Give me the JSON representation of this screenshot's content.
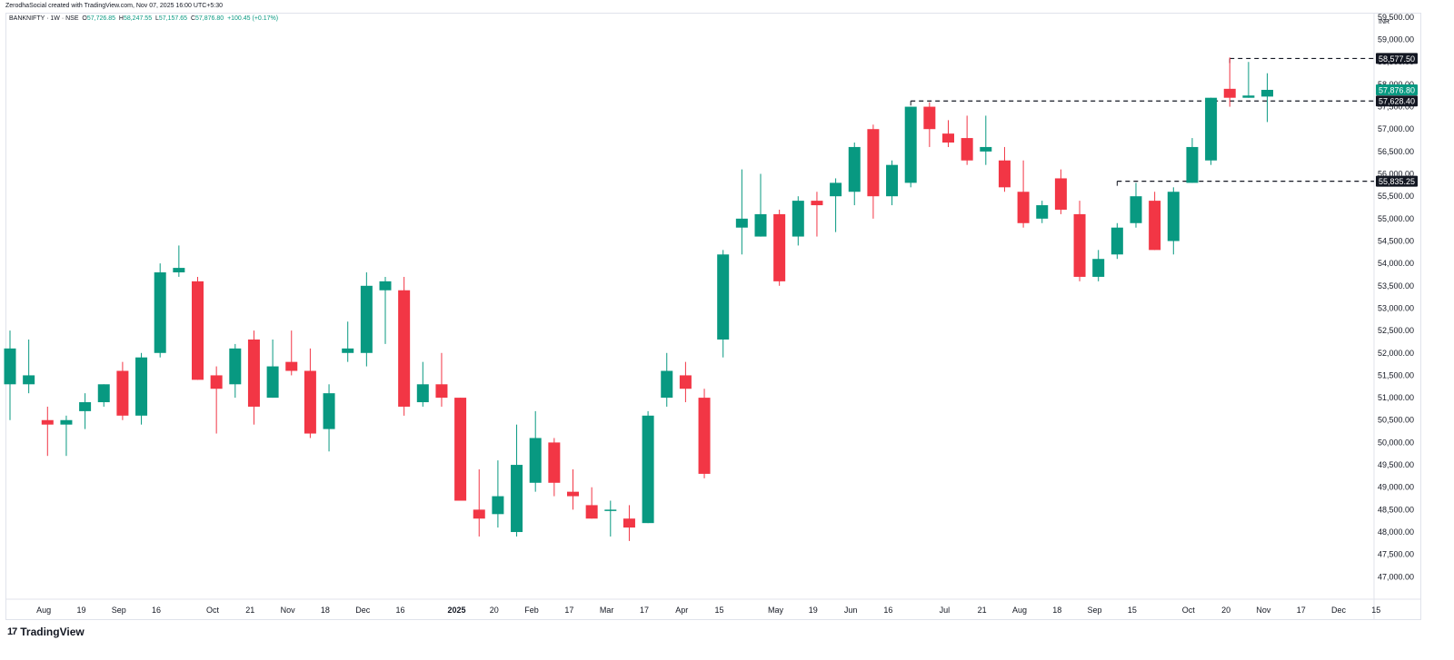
{
  "attribution": "ZerodhaSocial created with TradingView.com, Nov 07, 2025 16:00 UTC+5:30",
  "symbol_line": {
    "title": "BANKNIFTY · 1W · NSE",
    "open_label": "O",
    "open": "57,726.85",
    "high_label": "H",
    "high": "58,247.55",
    "low_label": "L",
    "low": "57,157.65",
    "close_label": "C",
    "close": "57,876.80",
    "change": "+100.45 (+0.17%)"
  },
  "brand": {
    "name": "TradingView",
    "logo_icon": "tradingview-logo-icon"
  },
  "colors": {
    "up": "#089981",
    "down": "#f23645",
    "grid": "#ffffff",
    "text": "#131722"
  },
  "chart_data": {
    "type": "candlestick",
    "title": "BANKNIFTY · 1W · NSE",
    "currency": "INR",
    "ylim": [
      46500,
      59600
    ],
    "y_ticks": [
      47000,
      47500,
      48000,
      48500,
      49000,
      49500,
      50000,
      50500,
      51000,
      51500,
      52000,
      52500,
      53000,
      53500,
      54000,
      54500,
      55000,
      55500,
      56000,
      56500,
      57000,
      57500,
      58000,
      58500,
      59000,
      59500
    ],
    "y_tick_labels": [
      "47,000.00",
      "47,500.00",
      "48,000.00",
      "48,500.00",
      "49,000.00",
      "49,500.00",
      "50,000.00",
      "50,500.00",
      "51,000.00",
      "51,500.00",
      "52,000.00",
      "52,500.00",
      "53,000.00",
      "53,500.00",
      "54,000.00",
      "54,500.00",
      "55,000.00",
      "55,500.00",
      "56,000.00",
      "56,500.00",
      "57,000.00",
      "57,500.00",
      "58,000.00",
      "58,500.00",
      "59,000.00",
      "59,500.00"
    ],
    "x_ticks": [
      {
        "i": 1.8,
        "label": "Aug",
        "bold": false
      },
      {
        "i": 3.8,
        "label": "19",
        "bold": false
      },
      {
        "i": 5.8,
        "label": "Sep",
        "bold": false
      },
      {
        "i": 7.8,
        "label": "16",
        "bold": false
      },
      {
        "i": 10.8,
        "label": "Oct",
        "bold": false
      },
      {
        "i": 12.8,
        "label": "21",
        "bold": false
      },
      {
        "i": 14.8,
        "label": "Nov",
        "bold": false
      },
      {
        "i": 16.8,
        "label": "18",
        "bold": false
      },
      {
        "i": 18.8,
        "label": "Dec",
        "bold": false
      },
      {
        "i": 20.8,
        "label": "16",
        "bold": false
      },
      {
        "i": 23.8,
        "label": "2025",
        "bold": true
      },
      {
        "i": 25.8,
        "label": "20",
        "bold": false
      },
      {
        "i": 27.8,
        "label": "Feb",
        "bold": false
      },
      {
        "i": 29.8,
        "label": "17",
        "bold": false
      },
      {
        "i": 31.8,
        "label": "Mar",
        "bold": false
      },
      {
        "i": 33.8,
        "label": "17",
        "bold": false
      },
      {
        "i": 35.8,
        "label": "Apr",
        "bold": false
      },
      {
        "i": 37.8,
        "label": "15",
        "bold": false
      },
      {
        "i": 40.8,
        "label": "May",
        "bold": false
      },
      {
        "i": 42.8,
        "label": "19",
        "bold": false
      },
      {
        "i": 44.8,
        "label": "Jun",
        "bold": false
      },
      {
        "i": 46.8,
        "label": "16",
        "bold": false
      },
      {
        "i": 49.8,
        "label": "Jul",
        "bold": false
      },
      {
        "i": 51.8,
        "label": "21",
        "bold": false
      },
      {
        "i": 53.8,
        "label": "Aug",
        "bold": false
      },
      {
        "i": 55.8,
        "label": "18",
        "bold": false
      },
      {
        "i": 57.8,
        "label": "Sep",
        "bold": false
      },
      {
        "i": 59.8,
        "label": "15",
        "bold": false
      },
      {
        "i": 62.8,
        "label": "Oct",
        "bold": false
      },
      {
        "i": 64.8,
        "label": "20",
        "bold": false
      },
      {
        "i": 66.8,
        "label": "Nov",
        "bold": false
      },
      {
        "i": 68.8,
        "label": "17",
        "bold": false
      },
      {
        "i": 70.8,
        "label": "Dec",
        "bold": false
      },
      {
        "i": 72.8,
        "label": "15",
        "bold": false
      }
    ],
    "candles": [
      [
        51300,
        52500,
        50500,
        52100
      ],
      [
        51300,
        52300,
        51100,
        51500
      ],
      [
        50500,
        50800,
        49700,
        50400
      ],
      [
        50400,
        50600,
        49700,
        50500
      ],
      [
        50700,
        51100,
        50300,
        50900
      ],
      [
        50900,
        51300,
        50800,
        51300
      ],
      [
        51600,
        51800,
        50500,
        50600
      ],
      [
        50600,
        52000,
        50400,
        51900
      ],
      [
        52000,
        54000,
        51900,
        53800
      ],
      [
        53800,
        54400,
        53700,
        53900
      ],
      [
        53600,
        53700,
        51400,
        51400
      ],
      [
        51500,
        51700,
        50200,
        51200
      ],
      [
        51300,
        52200,
        51000,
        52100
      ],
      [
        52300,
        52500,
        50400,
        50800
      ],
      [
        51000,
        52300,
        51000,
        51700
      ],
      [
        51800,
        52500,
        51500,
        51600
      ],
      [
        51600,
        52100,
        50100,
        50200
      ],
      [
        50300,
        51300,
        49800,
        51100
      ],
      [
        52000,
        52700,
        51800,
        52100
      ],
      [
        52000,
        53800,
        51700,
        53500
      ],
      [
        53400,
        53700,
        52200,
        53600
      ],
      [
        53400,
        53700,
        50600,
        50800
      ],
      [
        50900,
        51800,
        50800,
        51300
      ],
      [
        51300,
        52000,
        50800,
        51000
      ],
      [
        51000,
        51000,
        48700,
        48700
      ],
      [
        48500,
        49400,
        47900,
        48300
      ],
      [
        48400,
        49600,
        48100,
        48800
      ],
      [
        48000,
        50400,
        47900,
        49500
      ],
      [
        49100,
        50700,
        48900,
        50100
      ],
      [
        50000,
        50100,
        48800,
        49100
      ],
      [
        48900,
        49400,
        48500,
        48800
      ],
      [
        48600,
        49000,
        48300,
        48300
      ],
      [
        48500,
        48700,
        47900,
        48500
      ],
      [
        48300,
        48600,
        47800,
        48100
      ],
      [
        48200,
        50700,
        48200,
        50600
      ],
      [
        51000,
        52000,
        50800,
        51600
      ],
      [
        51500,
        51800,
        50900,
        51200
      ],
      [
        51000,
        51200,
        49200,
        49300
      ],
      [
        52300,
        54300,
        51900,
        54200
      ],
      [
        54800,
        56100,
        54200,
        55000
      ],
      [
        54600,
        56000,
        54600,
        55100
      ],
      [
        55100,
        55200,
        53500,
        53600
      ],
      [
        54600,
        55500,
        54400,
        55400
      ],
      [
        55400,
        55600,
        54600,
        55300
      ],
      [
        55500,
        55900,
        54700,
        55800
      ],
      [
        55600,
        56700,
        55300,
        56600
      ],
      [
        57000,
        57100,
        55000,
        55500
      ],
      [
        55500,
        56300,
        55300,
        56200
      ],
      [
        55800,
        57500,
        55700,
        57500
      ],
      [
        57500,
        57600,
        56600,
        57000
      ],
      [
        56900,
        57200,
        56600,
        56700
      ],
      [
        56800,
        57300,
        56200,
        56300
      ],
      [
        56500,
        57300,
        56200,
        56600
      ],
      [
        56300,
        56600,
        55600,
        55700
      ],
      [
        55600,
        56300,
        54800,
        54900
      ],
      [
        55000,
        55400,
        54900,
        55300
      ],
      [
        55900,
        56100,
        55100,
        55200
      ],
      [
        55100,
        55400,
        53600,
        53700
      ],
      [
        53700,
        54300,
        53600,
        54100
      ],
      [
        54200,
        54900,
        54100,
        54800
      ],
      [
        54900,
        55800,
        54800,
        55500
      ],
      [
        55400,
        55600,
        54300,
        54300
      ],
      [
        54500,
        55700,
        54200,
        55600
      ],
      [
        55800,
        56800,
        55800,
        56600
      ],
      [
        56300,
        57700,
        56200,
        57700
      ],
      [
        57900,
        58600,
        57500,
        57700
      ],
      [
        57700,
        58500,
        57700,
        57750
      ],
      [
        57726.85,
        58247.55,
        57157.65,
        57876.8
      ]
    ],
    "levels": [
      {
        "price": 58577.5,
        "label": "58,577.50",
        "from": 65,
        "to": 72
      },
      {
        "price": 57628.4,
        "label": "57,628.40",
        "from": 48,
        "to": 72
      },
      {
        "price": 55835.25,
        "label": "55,835.25",
        "from": 59,
        "to": 72
      }
    ],
    "last_price": {
      "price": 57876.8,
      "label": "57,876.80"
    }
  }
}
